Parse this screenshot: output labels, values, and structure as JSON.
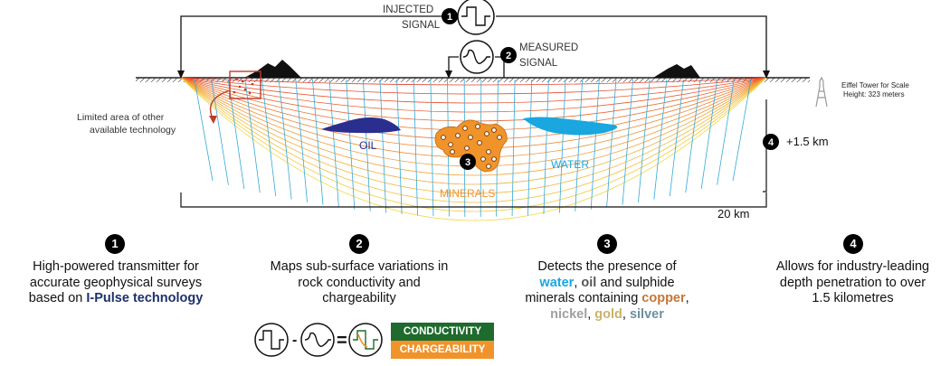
{
  "diagram": {
    "injected_signal": [
      "INJECTED",
      "SIGNAL"
    ],
    "measured_signal": [
      "MEASURED",
      "SIGNAL"
    ],
    "limited_area": [
      "Limited area of other",
      "available technology"
    ],
    "eiffel": [
      "Eiffel Tower for Scale",
      "Height: 323 meters"
    ],
    "depth": "+1.5 km",
    "width": "20 km",
    "oil_label": "OIL",
    "water_label": "WATER",
    "minerals_label": "MINERALS",
    "markers": [
      "1",
      "2",
      "3",
      "4"
    ],
    "colors": {
      "oil": "#2a2f8f",
      "water": "#1aa6df",
      "minerals": "#f0932b",
      "lines_hot": "#e8402a",
      "lines_cool": "#f6d640",
      "rays": "#34a9d8"
    }
  },
  "captions": [
    {
      "num": "1",
      "text1": "High-powered transmitter for",
      "text2": "accurate geophysical surveys",
      "text3a": "based on ",
      "text3b": "I-Pulse technology"
    },
    {
      "num": "2",
      "text1": "Maps sub-surface variations in",
      "text2": "rock conductivity and",
      "text3": "chargeability"
    },
    {
      "num": "3",
      "text1": "Detects the presence of",
      "w_water": "water",
      "w_sep1": ", ",
      "w_oil": "oil",
      "w_rest": " and sulphide",
      "text3a": "minerals containing ",
      "w_copper": "copper",
      "w_comma": ",",
      "w_nickel": "nickel",
      "w_sep2": ", ",
      "w_gold": "gold",
      "w_sep3": ", ",
      "w_silver": "silver"
    },
    {
      "num": "4",
      "text1": "Allows for industry-leading",
      "text2": "depth penetration to over",
      "text3": "1.5 kilometres"
    }
  ],
  "legend": {
    "conductivity": "CONDUCTIVITY",
    "chargeability": "CHARGEABILITY",
    "colors": {
      "conductivity": "#1e6b2d",
      "chargeability": "#f0932b"
    }
  }
}
